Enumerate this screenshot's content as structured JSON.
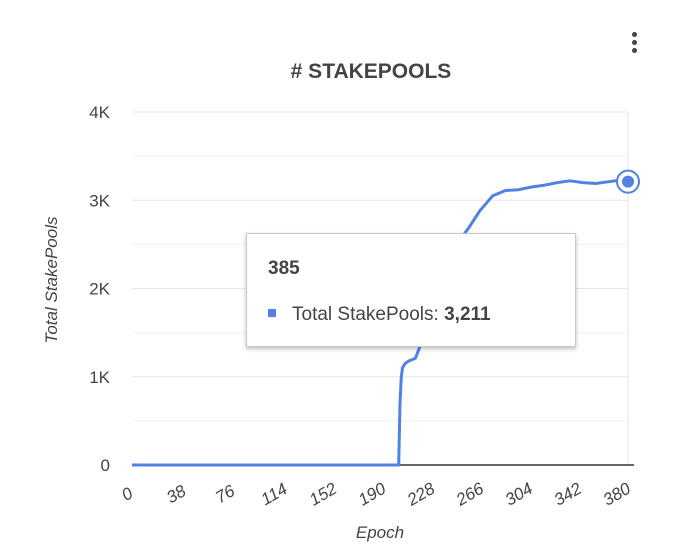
{
  "colors": {
    "series": "#5082e3",
    "grid": "#e6e6e6",
    "axis": "#333333",
    "text": "#444444"
  },
  "menu": {
    "icon": "more-vert-icon"
  },
  "tooltip": {
    "title": "385",
    "series_label": "Total StakePools:",
    "value": "3,211"
  },
  "chart_data": {
    "type": "line",
    "title": "# STAKEPOOLS",
    "xlabel": "Epoch",
    "ylabel": "Total StakePools",
    "xlim": [
      0,
      385
    ],
    "ylim": [
      0,
      4000
    ],
    "x_ticks": [
      0,
      38,
      76,
      114,
      152,
      190,
      228,
      266,
      304,
      342,
      380
    ],
    "y_ticks": [
      0,
      1000,
      2000,
      3000,
      4000
    ],
    "y_tick_labels": [
      "0",
      "1K",
      "2K",
      "3K",
      "4K"
    ],
    "grid": true,
    "legend": "none",
    "highlight": {
      "x": 385,
      "y": 3211
    },
    "series": [
      {
        "x": [
          0,
          207,
          208,
          209,
          210,
          212,
          215,
          220,
          225,
          230,
          240,
          250,
          258,
          262,
          270,
          280,
          290,
          300,
          310,
          320,
          330,
          340,
          350,
          360,
          370,
          380,
          385
        ],
        "y": [
          0,
          0,
          700,
          1000,
          1100,
          1150,
          1180,
          1210,
          1400,
          1800,
          2200,
          2500,
          2620,
          2700,
          2880,
          3050,
          3110,
          3120,
          3150,
          3170,
          3200,
          3220,
          3200,
          3190,
          3210,
          3230,
          3211
        ]
      }
    ]
  }
}
